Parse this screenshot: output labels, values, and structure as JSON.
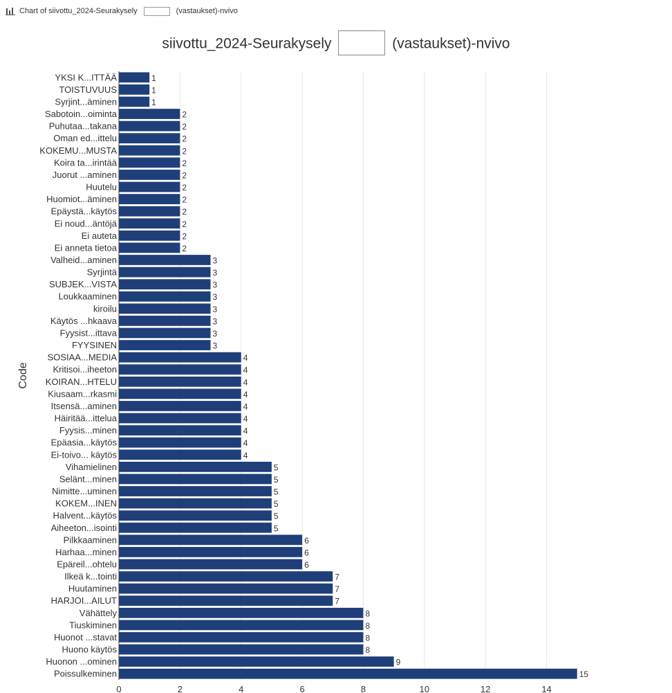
{
  "header": {
    "chart_label_prefix": "Chart of siivottu_2024-Seurakysely",
    "chart_label_suffix": "(vastaukset)-nvivo"
  },
  "chart_data": {
    "type": "bar",
    "orientation": "horizontal",
    "title_prefix": "siivottu_2024-Seurakysely",
    "title_suffix": "(vastaukset)-nvivo",
    "ylabel": "Code",
    "xlabel": "",
    "xlim": [
      0,
      15.3
    ],
    "xticks": [
      0,
      2,
      4,
      6,
      8,
      10,
      12,
      14
    ],
    "grid": true,
    "bar_color": "#1f3f7a",
    "categories": [
      "YKSI K...ITTÄÄ",
      "TOISTUVUUS",
      "Syrjint...äminen",
      "Sabotoin...oiminta",
      "Puhutaa...takana",
      "Oman ed...ittelu",
      "KOKEMU...MUSTA",
      "Koira ta...irintää",
      "Juorut ...aminen",
      "Huutelu",
      "Huomiot...äminen",
      "Epäystä...käytös",
      "Ei noud...äntöjä",
      "Ei auteta",
      "Ei anneta tietoa",
      "Valheid...aminen",
      "Syrjintä",
      "SUBJEK...VISTA",
      "Loukkaaminen",
      "kiroilu",
      "Käytös ...hkaava",
      "Fyysist...ittava",
      "FYYSINEN",
      "SOSIAA...MEDIA",
      "Kritisoi...iheeton",
      "KOIRAN...HTELU",
      "Kiusaam...rkasmi",
      "Itsensä...aminen",
      "Häiritää...ittelua",
      "Fyysis...minen",
      "Epäasia...käytös",
      "Ei-toivo... käytös",
      "Vihamielinen",
      "Selänt...minen",
      "Nimitte...uminen",
      "KOKEM...INEN",
      "Halvent...käytös",
      "Aiheeton...isointi",
      "Pilkkaaminen",
      "Harhaa...minen",
      "Epäreil...ohtelu",
      "Ilkeä k...tointi",
      "Huutaminen",
      "HARJOI...AILUT",
      "Vähättely",
      "Tiuskiminen",
      "Huonot ...stavat",
      "Huono käytös",
      "Huonon ...ominen",
      "Poissulkeminen"
    ],
    "values": [
      1,
      1,
      1,
      2,
      2,
      2,
      2,
      2,
      2,
      2,
      2,
      2,
      2,
      2,
      2,
      3,
      3,
      3,
      3,
      3,
      3,
      3,
      3,
      4,
      4,
      4,
      4,
      4,
      4,
      4,
      4,
      4,
      5,
      5,
      5,
      5,
      5,
      5,
      6,
      6,
      6,
      7,
      7,
      7,
      8,
      8,
      8,
      8,
      9,
      15
    ]
  }
}
